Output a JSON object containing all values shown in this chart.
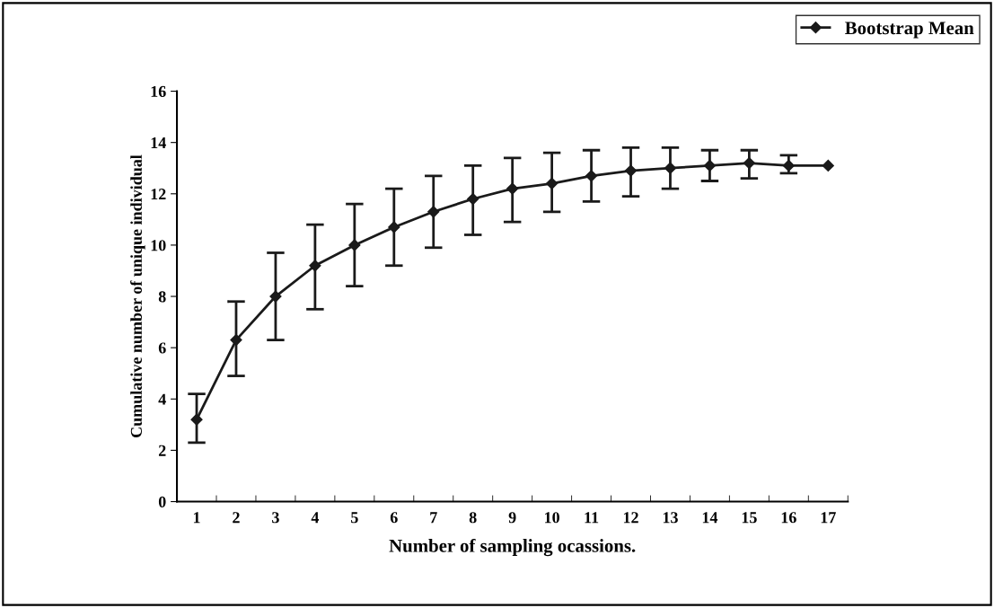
{
  "chart_data": {
    "type": "line",
    "xlabel": "Number of sampling ocassions.",
    "ylabel": "Cumulative number of unique individual",
    "categories": [
      "1",
      "2",
      "3",
      "4",
      "5",
      "6",
      "7",
      "8",
      "9",
      "10",
      "11",
      "12",
      "13",
      "14",
      "15",
      "16",
      "17"
    ],
    "series": [
      {
        "name": "Bootstrap Mean",
        "color": "#1a1a1a",
        "values": [
          3.2,
          6.3,
          8.0,
          9.2,
          10.0,
          10.7,
          11.3,
          11.8,
          12.2,
          12.4,
          12.7,
          12.9,
          13.0,
          13.1,
          13.2,
          13.1,
          13.1
        ],
        "errors": [
          [
            2.3,
            4.2
          ],
          [
            4.9,
            7.8
          ],
          [
            6.3,
            9.7
          ],
          [
            7.5,
            10.8
          ],
          [
            8.4,
            11.6
          ],
          [
            9.2,
            12.2
          ],
          [
            9.9,
            12.7
          ],
          [
            10.4,
            13.1
          ],
          [
            10.9,
            13.4
          ],
          [
            11.3,
            13.6
          ],
          [
            11.7,
            13.7
          ],
          [
            11.9,
            13.8
          ],
          [
            12.2,
            13.8
          ],
          [
            12.5,
            13.7
          ],
          [
            12.6,
            13.7
          ],
          [
            12.8,
            13.5
          ],
          null
        ]
      }
    ],
    "ylim": [
      0,
      16
    ],
    "yticks": [
      0,
      2,
      4,
      6,
      8,
      10,
      12,
      14,
      16
    ],
    "marker": "diamond",
    "line_style": "solid",
    "grid": false,
    "legend": "top right"
  }
}
